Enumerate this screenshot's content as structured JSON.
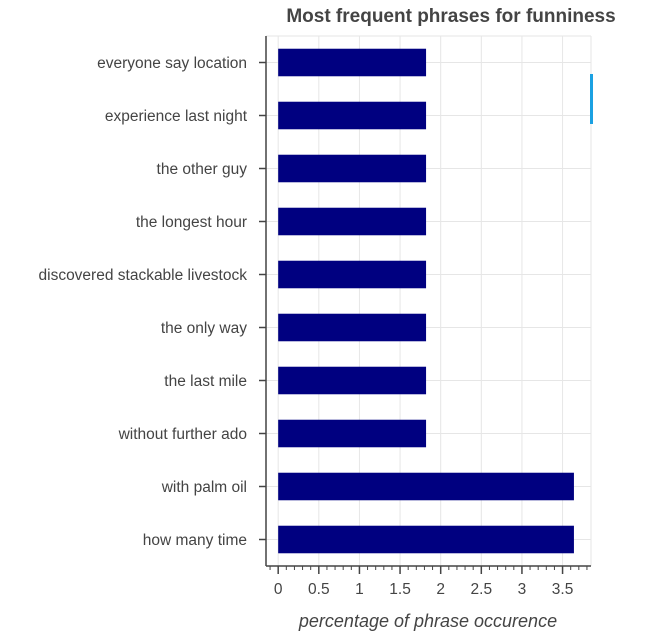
{
  "chart_data": {
    "type": "bar",
    "orientation": "horizontal",
    "title": "Most frequent phrases for funniness",
    "xlabel": "percentage of phrase occurence",
    "ylabel": "",
    "categories": [
      "everyone say location",
      "experience last night",
      "the other guy",
      "the longest hour",
      "discovered stackable livestock",
      "the only way",
      "the last mile",
      "without further ado",
      "with palm oil",
      "how many time"
    ],
    "values": [
      1.82,
      1.82,
      1.82,
      1.82,
      1.82,
      1.82,
      1.82,
      1.82,
      3.64,
      3.64
    ],
    "xlim": [
      -0.15,
      3.85
    ],
    "x_ticks": [
      0,
      0.5,
      1,
      1.5,
      2,
      2.5,
      3,
      3.5
    ],
    "x_tick_labels": [
      "0",
      "0.5",
      "1",
      "1.5",
      "2",
      "2.5",
      "3",
      "3.5"
    ],
    "bar_color": "#000080",
    "grid": true,
    "grid_color": "#e6e6e6",
    "accent_color": "#1ba1e2"
  }
}
